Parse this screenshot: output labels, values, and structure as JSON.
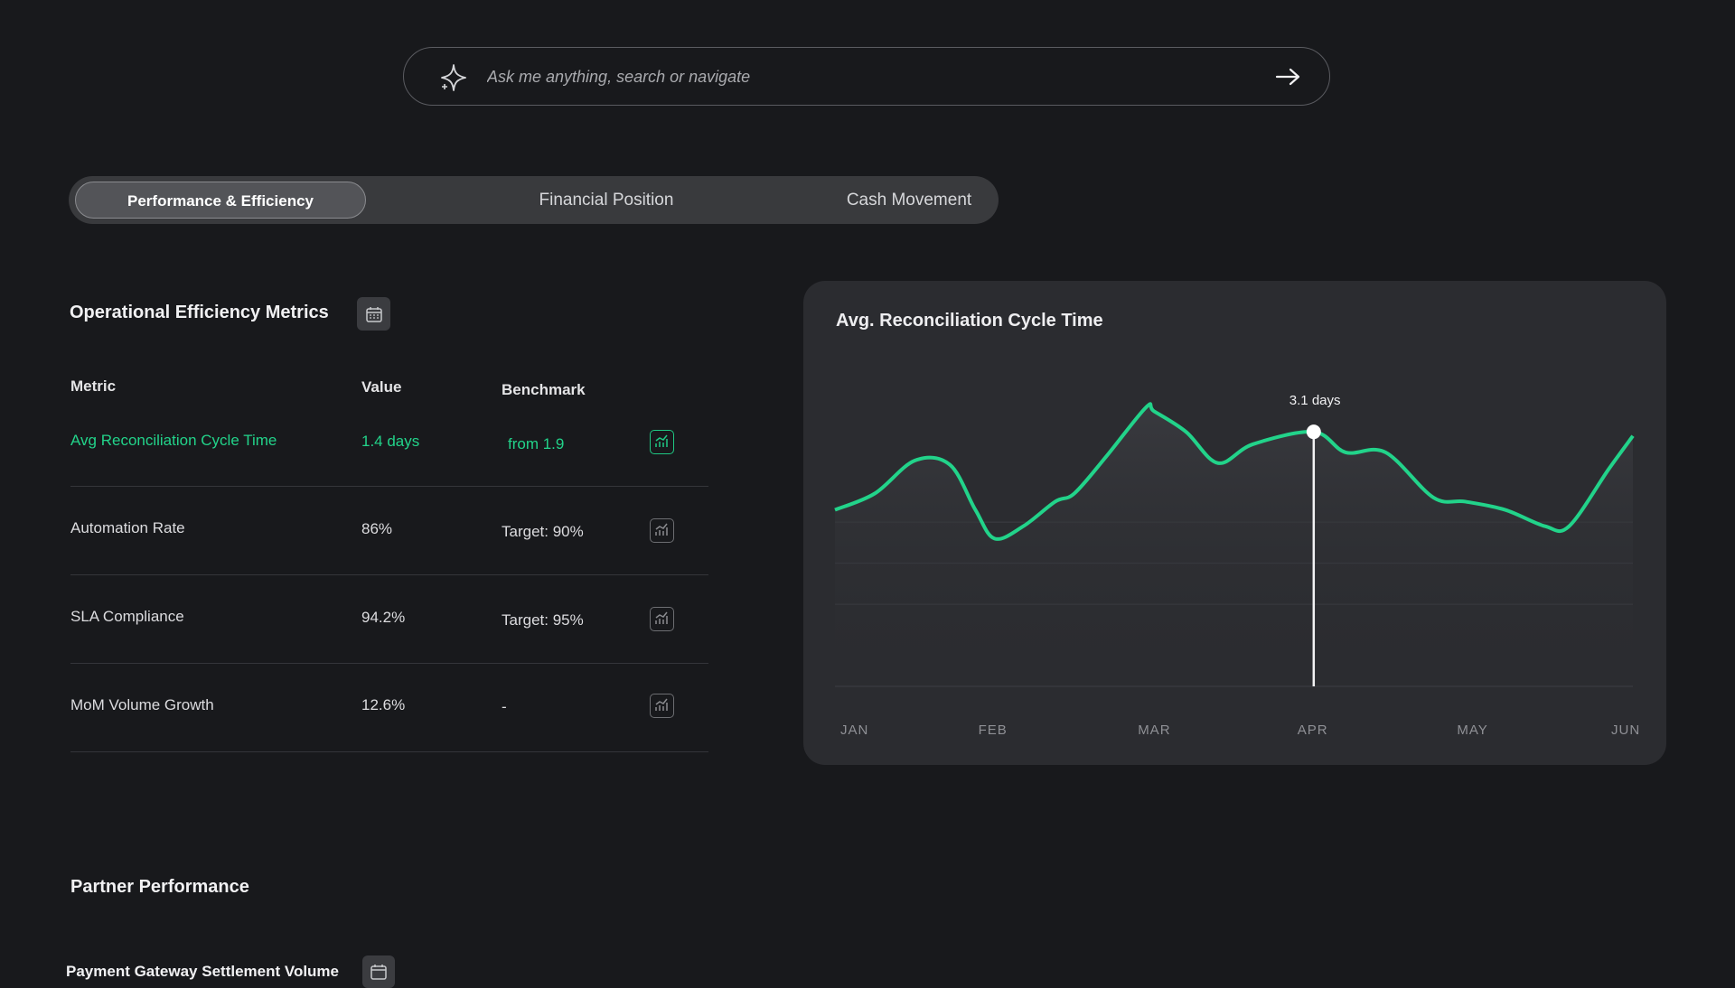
{
  "search": {
    "placeholder": "Ask me anything, search or navigate"
  },
  "tabs": [
    {
      "label": "Performance & Efficiency",
      "active": true
    },
    {
      "label": "Financial Position",
      "active": false
    },
    {
      "label": "Cash Movement",
      "active": false
    }
  ],
  "metrics_section": {
    "title": "Operational Efficiency Metrics",
    "columns": {
      "metric": "Metric",
      "value": "Value",
      "benchmark": "Benchmark"
    },
    "rows": [
      {
        "metric": "Avg Reconciliation Cycle Time",
        "value": "1.4 days",
        "benchmark": "from 1.9",
        "highlighted": true
      },
      {
        "metric": "Automation Rate",
        "value": "86%",
        "benchmark": "Target: 90%",
        "highlighted": false
      },
      {
        "metric": "SLA Compliance",
        "value": "94.2%",
        "benchmark": "Target: 95%",
        "highlighted": false
      },
      {
        "metric": "MoM Volume Growth",
        "value": "12.6%",
        "benchmark": "-",
        "highlighted": false
      }
    ]
  },
  "partner_section": {
    "title": "Partner Performance",
    "subtitle": "Payment Gateway Settlement Volume"
  },
  "colors": {
    "background": "#18191c",
    "accent_green": "#22d38a",
    "card": "#2b2c30"
  },
  "chart_data": {
    "type": "line",
    "title": "Avg. Reconciliation Cycle Time",
    "categories": [
      "JAN",
      "FEB",
      "MAR",
      "APR",
      "MAY",
      "JUN"
    ],
    "x": [
      0,
      0.25,
      0.5,
      0.72,
      0.88,
      1.0,
      1.18,
      1.38,
      1.5,
      1.7,
      1.95,
      2.0,
      2.2,
      2.4,
      2.62,
      3.0,
      3.2,
      3.45,
      3.75,
      3.95,
      4.2,
      4.45,
      4.6,
      4.85,
      5.0
    ],
    "y": [
      2.15,
      2.35,
      2.75,
      2.7,
      2.15,
      1.8,
      1.95,
      2.25,
      2.35,
      2.8,
      3.4,
      3.35,
      3.1,
      2.72,
      2.95,
      3.1,
      2.85,
      2.85,
      2.3,
      2.25,
      2.15,
      1.95,
      1.95,
      2.65,
      3.05
    ],
    "highlight": {
      "category": "APR",
      "value_label": "3.1 days"
    },
    "xlabel": "",
    "ylabel": "",
    "ylim": [
      0,
      4.4
    ],
    "grid": true,
    "line_color": "#22d38a"
  }
}
